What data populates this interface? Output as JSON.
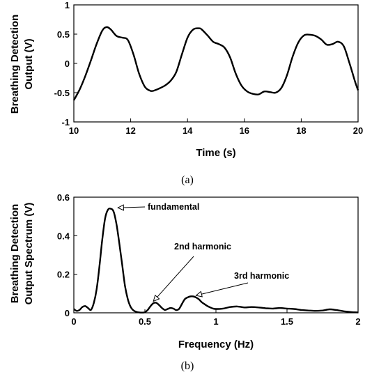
{
  "chart_data": [
    {
      "type": "line",
      "panel_label": "(a)",
      "xlabel": "Time (s)",
      "ylabel": [
        "Breathing Detection",
        "Output (V)"
      ],
      "xlim": [
        10,
        20
      ],
      "ylim": [
        -1,
        1
      ],
      "xticks": [
        10,
        12,
        14,
        16,
        18,
        20
      ],
      "yticks": [
        -1,
        -0.5,
        0,
        0.5,
        1
      ],
      "ytick_labels": [
        "-1",
        "-0.5",
        "0",
        "0.5",
        "1"
      ],
      "grid": false,
      "series": [
        {
          "color": "#000000",
          "x": [
            10.0,
            10.2,
            10.4,
            10.6,
            10.8,
            11.0,
            11.15,
            11.3,
            11.5,
            11.7,
            11.9,
            12.1,
            12.3,
            12.5,
            12.7,
            12.85,
            13.0,
            13.2,
            13.4,
            13.6,
            13.8,
            14.0,
            14.2,
            14.4,
            14.5,
            14.7,
            14.9,
            15.1,
            15.3,
            15.5,
            15.7,
            15.9,
            16.1,
            16.3,
            16.5,
            16.7,
            16.9,
            17.1,
            17.3,
            17.5,
            17.7,
            17.9,
            18.1,
            18.3,
            18.5,
            18.7,
            18.9,
            19.1,
            19.3,
            19.5,
            19.7,
            19.9,
            20.0
          ],
          "y": [
            -0.63,
            -0.45,
            -0.22,
            0.05,
            0.33,
            0.56,
            0.62,
            0.58,
            0.47,
            0.44,
            0.4,
            0.15,
            -0.18,
            -0.4,
            -0.47,
            -0.46,
            -0.43,
            -0.38,
            -0.3,
            -0.15,
            0.15,
            0.44,
            0.58,
            0.6,
            0.58,
            0.48,
            0.37,
            0.33,
            0.27,
            0.1,
            -0.18,
            -0.38,
            -0.48,
            -0.52,
            -0.53,
            -0.48,
            -0.49,
            -0.5,
            -0.42,
            -0.2,
            0.12,
            0.36,
            0.48,
            0.49,
            0.47,
            0.41,
            0.32,
            0.33,
            0.37,
            0.29,
            0.0,
            -0.32,
            -0.46
          ]
        }
      ]
    },
    {
      "type": "line",
      "panel_label": "(b)",
      "xlabel": "Frequency (Hz)",
      "ylabel": [
        "Breathing Detection",
        "Output Spectrum (V)"
      ],
      "xlim": [
        0,
        2
      ],
      "ylim": [
        0,
        0.6
      ],
      "xticks": [
        0,
        0.5,
        1,
        1.5,
        2
      ],
      "xtick_labels": [
        "0",
        "0.5",
        "1",
        "1.5",
        "2"
      ],
      "yticks": [
        0,
        0.2,
        0.4,
        0.6
      ],
      "ytick_labels": [
        "0",
        "0.2",
        "0.4",
        "0.6"
      ],
      "grid": false,
      "series": [
        {
          "color": "#000000",
          "x": [
            0.0,
            0.02,
            0.04,
            0.06,
            0.08,
            0.1,
            0.12,
            0.14,
            0.16,
            0.18,
            0.2,
            0.22,
            0.24,
            0.26,
            0.28,
            0.3,
            0.32,
            0.34,
            0.36,
            0.38,
            0.4,
            0.42,
            0.44,
            0.46,
            0.48,
            0.5,
            0.52,
            0.54,
            0.56,
            0.58,
            0.6,
            0.62,
            0.64,
            0.66,
            0.68,
            0.7,
            0.72,
            0.74,
            0.76,
            0.78,
            0.8,
            0.82,
            0.84,
            0.86,
            0.88,
            0.9,
            0.92,
            0.94,
            0.96,
            0.98,
            1.0,
            1.05,
            1.1,
            1.15,
            1.2,
            1.25,
            1.3,
            1.35,
            1.4,
            1.45,
            1.5,
            1.55,
            1.6,
            1.65,
            1.7,
            1.75,
            1.8,
            1.85,
            1.9,
            1.95,
            2.0
          ],
          "y": [
            0.02,
            0.01,
            0.015,
            0.03,
            0.035,
            0.025,
            0.015,
            0.05,
            0.12,
            0.24,
            0.38,
            0.49,
            0.535,
            0.54,
            0.525,
            0.46,
            0.36,
            0.25,
            0.14,
            0.07,
            0.03,
            0.012,
            0.005,
            0.002,
            0.001,
            0.003,
            0.015,
            0.035,
            0.05,
            0.052,
            0.04,
            0.025,
            0.015,
            0.02,
            0.025,
            0.022,
            0.014,
            0.02,
            0.045,
            0.07,
            0.08,
            0.085,
            0.085,
            0.08,
            0.07,
            0.055,
            0.045,
            0.035,
            0.028,
            0.022,
            0.02,
            0.022,
            0.03,
            0.033,
            0.028,
            0.03,
            0.028,
            0.024,
            0.022,
            0.025,
            0.022,
            0.02,
            0.015,
            0.012,
            0.01,
            0.012,
            0.018,
            0.014,
            0.008,
            0.004,
            0.002
          ]
        }
      ],
      "annotations": [
        {
          "text": "fundamental",
          "x": 0.31,
          "y": 0.545
        },
        {
          "text": "2nd harmonic",
          "x": 0.56,
          "y": 0.06
        },
        {
          "text": "3rd harmonic",
          "x": 0.86,
          "y": 0.09
        }
      ]
    }
  ]
}
